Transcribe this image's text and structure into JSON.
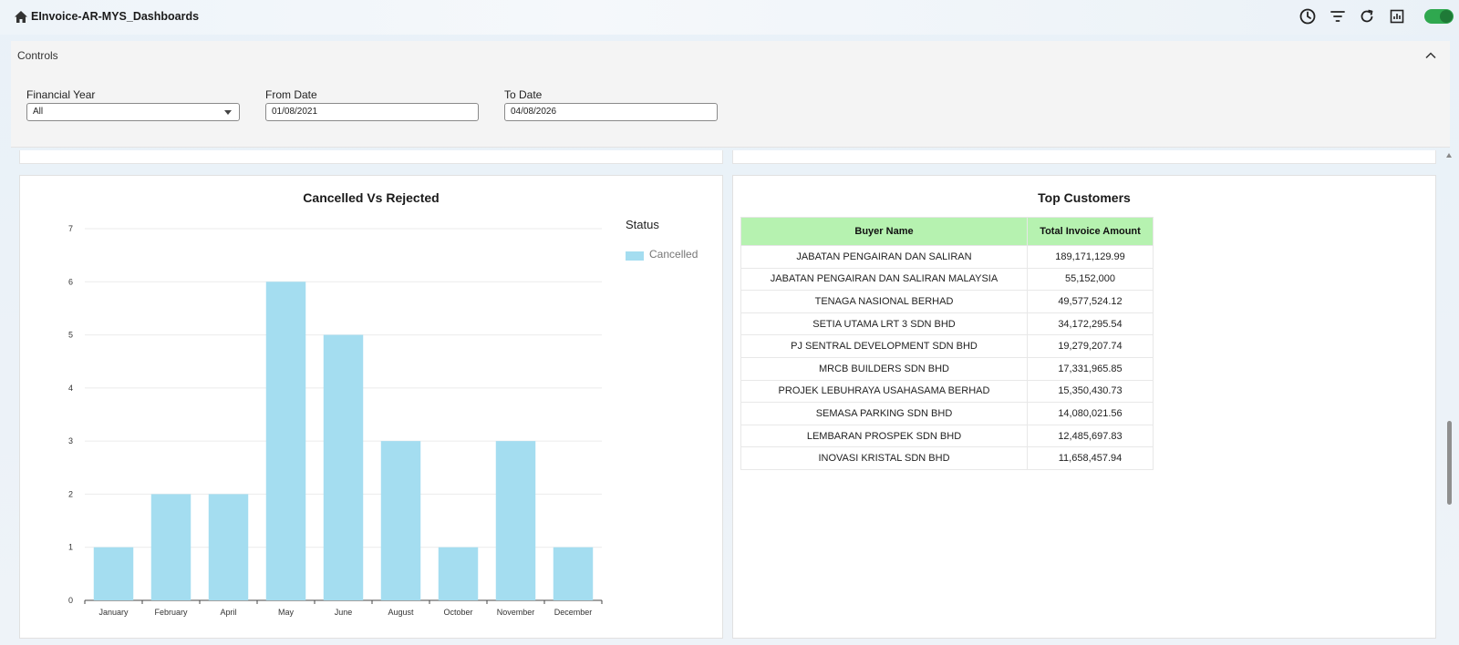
{
  "header": {
    "title": "EInvoice-AR-MYS_Dashboards",
    "icons": [
      "home-icon",
      "history-icon",
      "filter-icon",
      "refresh-icon",
      "report-icon"
    ],
    "toggle_on": true,
    "accent_color": "#2fa84f"
  },
  "controls": {
    "title": "Controls",
    "financial_year": {
      "label": "Financial Year",
      "value": "All"
    },
    "from_date": {
      "label": "From Date",
      "value": "01/08/2021"
    },
    "to_date": {
      "label": "To Date",
      "value": "04/08/2026"
    }
  },
  "chart_data": {
    "type": "bar",
    "title": "Cancelled Vs Rejected",
    "categories": [
      "January",
      "February",
      "April",
      "May",
      "June",
      "August",
      "October",
      "November",
      "December"
    ],
    "series": [
      {
        "name": "Cancelled",
        "values": [
          1,
          2,
          2,
          6,
          5,
          3,
          1,
          3,
          1
        ],
        "color": "#a4ddf0"
      }
    ],
    "legend_title": "Status",
    "legend_position": "top-right",
    "ylim": [
      0,
      7
    ],
    "yticks": [
      "0",
      "1",
      "2",
      "3",
      "4",
      "5",
      "6",
      "7"
    ],
    "grid": true
  },
  "top_customers": {
    "title": "Top Customers",
    "header_color": "#b6f2b0",
    "columns": [
      "Buyer Name",
      "Total Invoice Amount"
    ],
    "rows": [
      [
        "JABATAN PENGAIRAN DAN SALIRAN",
        "189,171,129.99"
      ],
      [
        "JABATAN PENGAIRAN DAN SALIRAN MALAYSIA",
        "55,152,000"
      ],
      [
        "TENAGA NASIONAL BERHAD",
        "49,577,524.12"
      ],
      [
        "SETIA UTAMA LRT 3 SDN BHD",
        "34,172,295.54"
      ],
      [
        "PJ SENTRAL DEVELOPMENT SDN BHD",
        "19,279,207.74"
      ],
      [
        "MRCB BUILDERS SDN BHD",
        "17,331,965.85"
      ],
      [
        "PROJEK LEBUHRAYA USAHASAMA BERHAD",
        "15,350,430.73"
      ],
      [
        "SEMASA PARKING SDN BHD",
        "14,080,021.56"
      ],
      [
        "LEMBARAN PROSPEK SDN BHD",
        "12,485,697.83"
      ],
      [
        "INOVASI KRISTAL SDN BHD",
        "11,658,457.94"
      ]
    ]
  }
}
